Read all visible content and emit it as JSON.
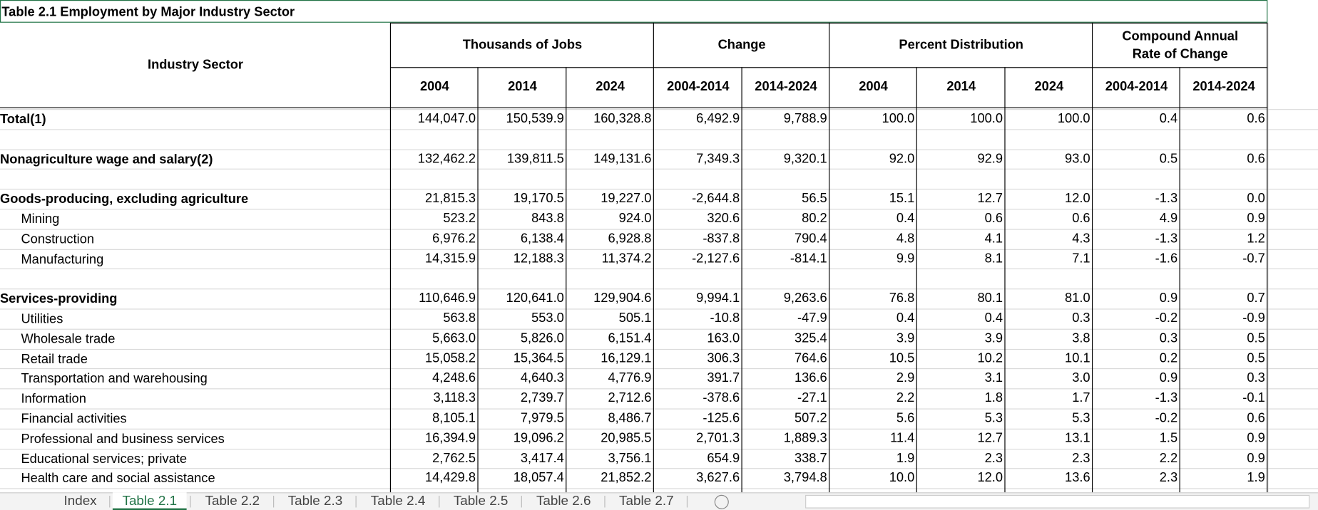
{
  "table": {
    "title": "Table 2.1 Employment by Major Industry Sector",
    "row_header": "Industry Sector",
    "groups": [
      "Thousands of Jobs",
      "Change",
      "Percent Distribution",
      "Compound Annual Rate of Change"
    ],
    "subheaders": [
      "2004",
      "2014",
      "2024",
      "2004-2014",
      "2014-2024",
      "2004",
      "2014",
      "2024",
      "2004-2014",
      "2014-2024"
    ],
    "sections": [
      [
        {
          "label": "Total(1)",
          "cells": [
            "144,047.0",
            "150,539.9",
            "160,328.8",
            "6,492.9",
            "9,788.9",
            "100.0",
            "100.0",
            "100.0",
            "0.4",
            "0.6"
          ]
        }
      ],
      [
        {
          "label": "Nonagriculture wage and salary(2)",
          "cells": [
            "132,462.2",
            "139,811.5",
            "149,131.6",
            "7,349.3",
            "9,320.1",
            "92.0",
            "92.9",
            "93.0",
            "0.5",
            "0.6"
          ]
        }
      ],
      [
        {
          "label": "Goods-producing, excluding agriculture",
          "cells": [
            "21,815.3",
            "19,170.5",
            "19,227.0",
            "-2,644.8",
            "56.5",
            "15.1",
            "12.7",
            "12.0",
            "-1.3",
            "0.0"
          ]
        },
        {
          "label": "Mining",
          "cells": [
            "523.2",
            "843.8",
            "924.0",
            "320.6",
            "80.2",
            "0.4",
            "0.6",
            "0.6",
            "4.9",
            "0.9"
          ]
        },
        {
          "label": "Construction",
          "cells": [
            "6,976.2",
            "6,138.4",
            "6,928.8",
            "-837.8",
            "790.4",
            "4.8",
            "4.1",
            "4.3",
            "-1.3",
            "1.2"
          ]
        },
        {
          "label": "Manufacturing",
          "cells": [
            "14,315.9",
            "12,188.3",
            "11,374.2",
            "-2,127.6",
            "-814.1",
            "9.9",
            "8.1",
            "7.1",
            "-1.6",
            "-0.7"
          ]
        }
      ],
      [
        {
          "label": "Services-providing",
          "cells": [
            "110,646.9",
            "120,641.0",
            "129,904.6",
            "9,994.1",
            "9,263.6",
            "76.8",
            "80.1",
            "81.0",
            "0.9",
            "0.7"
          ]
        },
        {
          "label": "Utilities",
          "cells": [
            "563.8",
            "553.0",
            "505.1",
            "-10.8",
            "-47.9",
            "0.4",
            "0.4",
            "0.3",
            "-0.2",
            "-0.9"
          ]
        },
        {
          "label": "Wholesale trade",
          "cells": [
            "5,663.0",
            "5,826.0",
            "6,151.4",
            "163.0",
            "325.4",
            "3.9",
            "3.9",
            "3.8",
            "0.3",
            "0.5"
          ]
        },
        {
          "label": "Retail trade",
          "cells": [
            "15,058.2",
            "15,364.5",
            "16,129.1",
            "306.3",
            "764.6",
            "10.5",
            "10.2",
            "10.1",
            "0.2",
            "0.5"
          ]
        },
        {
          "label": "Transportation and warehousing",
          "cells": [
            "4,248.6",
            "4,640.3",
            "4,776.9",
            "391.7",
            "136.6",
            "2.9",
            "3.1",
            "3.0",
            "0.9",
            "0.3"
          ]
        },
        {
          "label": "Information",
          "cells": [
            "3,118.3",
            "2,739.7",
            "2,712.6",
            "-378.6",
            "-27.1",
            "2.2",
            "1.8",
            "1.7",
            "-1.3",
            "-0.1"
          ]
        },
        {
          "label": "Financial activities",
          "cells": [
            "8,105.1",
            "7,979.5",
            "8,486.7",
            "-125.6",
            "507.2",
            "5.6",
            "5.3",
            "5.3",
            "-0.2",
            "0.6"
          ]
        },
        {
          "label": "Professional and business services",
          "cells": [
            "16,394.9",
            "19,096.2",
            "20,985.5",
            "2,701.3",
            "1,889.3",
            "11.4",
            "12.7",
            "13.1",
            "1.5",
            "0.9"
          ]
        },
        {
          "label": "Educational services; private",
          "cells": [
            "2,762.5",
            "3,417.4",
            "3,756.1",
            "654.9",
            "338.7",
            "1.9",
            "2.3",
            "2.3",
            "2.2",
            "0.9"
          ]
        },
        {
          "label": "Health care and social assistance",
          "cells": [
            "14,429.8",
            "18,057.4",
            "21,852.2",
            "3,627.6",
            "3,794.8",
            "10.0",
            "12.0",
            "13.6",
            "2.3",
            "1.9"
          ]
        }
      ]
    ]
  },
  "tabs": [
    "Index",
    "Table 2.1",
    "Table 2.2",
    "Table 2.3",
    "Table 2.4",
    "Table 2.5",
    "Table 2.6",
    "Table 2.7"
  ]
}
